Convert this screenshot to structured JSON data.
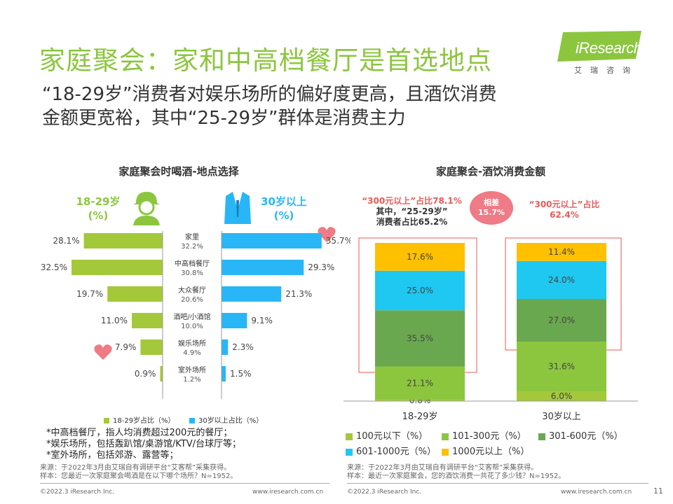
{
  "header": {
    "title": "家庭聚会：家和中高档餐厅是首选地点",
    "subtitle_line1": "“18-29岁”消费者对娱乐场所的偏好度更高，且酒饮消费",
    "subtitle_line2": "金额更宽裕，其中“25-29岁”群体是消费主力",
    "logo_text": "iResearch",
    "logo_sub": "艾瑞咨询"
  },
  "left_panel": {
    "title": "家庭聚会时喝酒-地点选择",
    "age_left_line1": "18-29岁",
    "age_left_line2": "(%)",
    "age_right_line1": "30岁以上",
    "age_right_line2": "(%)",
    "legend_left": "18-29岁占比（%）",
    "legend_right": "30岁以上占比（%）",
    "notes": [
      "*中高档餐厅，指人均消费超过200元的餐厅；",
      "*娱乐场所，包括轰趴馆/桌游馆/KTV/台球厅等；",
      "*室外场所，包括郊游、露营等；"
    ],
    "source_line1": "来源：于2022年3月由艾瑞自有调研平台“艾客帮”采集获得。",
    "source_line2": "样本：您最近一次家庭聚会喝酒是在以下哪个场所？N=1952。"
  },
  "right_panel": {
    "title": "家庭聚会-酒饮消费金额",
    "note_left_line1": "“300元以上”占比78.1%",
    "note_left_line2": "其中，“25-29岁”",
    "note_left_line3": "消费者占比65.2%",
    "diff_line1": "相差",
    "diff_line2": "15.7%",
    "note_right_line1": "“300元以上”占比",
    "note_right_line2": "62.4%",
    "legend": [
      "100元以下（%）",
      "101-300元（%）",
      "301-600元（%）",
      "601-1000元（%）",
      "1000元以上（%）"
    ],
    "source_line1": "来源：于2022年3月由艾瑞自有调研平台“艾客帮”采集获得。",
    "source_line2": "样本：最近一次家庭聚会，您的酒饮消费一共花了多少钱？N=1952。"
  },
  "footer": {
    "left_copyright": "©2022.3 iResearch Inc.",
    "left_url": "www.iresearch.com.cn",
    "right_copyright": "©2022.3 iResearch Inc.",
    "right_url": "www.iresearch.com.cn",
    "page_number": "11"
  },
  "colors": {
    "green_light": "#a3c93a",
    "blue": "#29b6f6",
    "green": "#8cc63f",
    "dark_green": "#6aa84f",
    "cyan": "#1ec8f0",
    "yellow": "#ffc000",
    "red": "#e85a5a"
  },
  "chart_data": [
    {
      "type": "bar",
      "orientation": "horizontal-butterfly",
      "title": "家庭聚会时喝酒-地点选择",
      "categories": [
        "家里",
        "中高档餐厅",
        "大众餐厅",
        "酒吧/小酒馆",
        "娱乐场所",
        "室外场所"
      ],
      "overall_labels": [
        "32.2%",
        "30.8%",
        "20.6%",
        "10.0%",
        "4.9%",
        "1.2%"
      ],
      "series": [
        {
          "name": "18-29岁占比（%）",
          "values": [
            28.1,
            32.5,
            19.7,
            11.0,
            7.9,
            0.9
          ],
          "labels": [
            "28.1%",
            "32.5%",
            "19.7%",
            "11.0%",
            "7.9%",
            "0.9%"
          ]
        },
        {
          "name": "30岁以上占比（%）",
          "values": [
            35.7,
            29.3,
            21.3,
            9.1,
            2.3,
            1.5
          ],
          "labels": [
            "35.7%",
            "29.3%",
            "21.3%",
            "9.1%",
            "2.3%",
            "1.5%"
          ]
        }
      ]
    },
    {
      "type": "bar",
      "orientation": "stacked-100",
      "title": "家庭聚会-酒饮消费金额",
      "categories": [
        "18-29岁",
        "30岁以上"
      ],
      "series": [
        {
          "name": "100元以下（%）",
          "values": [
            0.8,
            6.0
          ],
          "labels": [
            "0.8%",
            "6.0%"
          ]
        },
        {
          "name": "101-300元（%）",
          "values": [
            21.1,
            31.6
          ],
          "labels": [
            "21.1%",
            "31.6%"
          ]
        },
        {
          "name": "301-600元（%）",
          "values": [
            35.5,
            27.0
          ],
          "labels": [
            "35.5%",
            "27.0%"
          ]
        },
        {
          "name": "601-1000元（%）",
          "values": [
            25.0,
            24.0
          ],
          "labels": [
            "25.0%",
            "24.0%"
          ]
        },
        {
          "name": "1000元以上（%）",
          "values": [
            17.6,
            11.4
          ],
          "labels": [
            "17.6%",
            "11.4%"
          ]
        }
      ]
    }
  ]
}
